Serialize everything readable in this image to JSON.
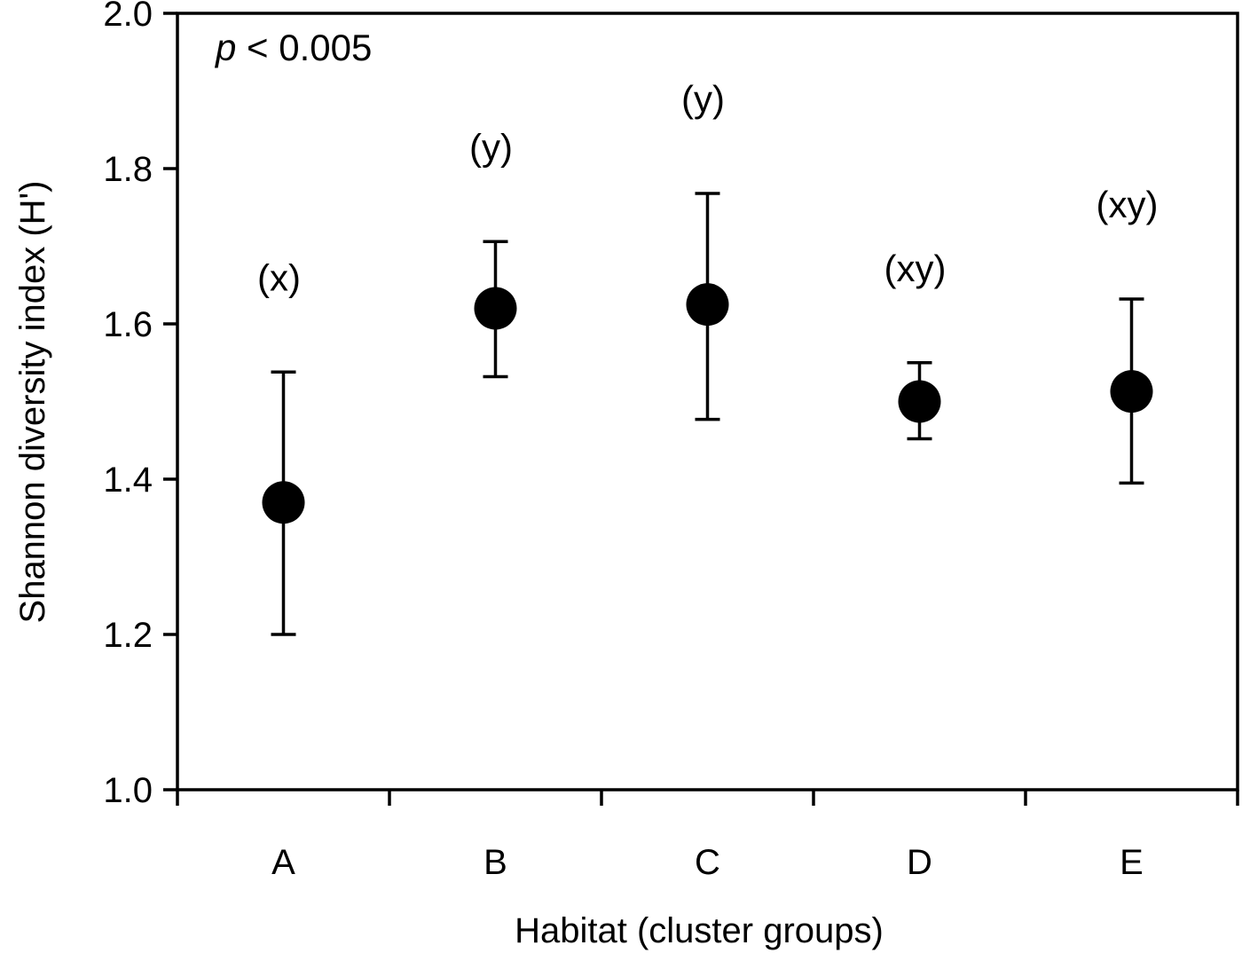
{
  "chart_data": {
    "type": "scatter",
    "categories": [
      "A",
      "B",
      "C",
      "D",
      "E"
    ],
    "values": [
      1.37,
      1.62,
      1.625,
      1.5,
      1.513
    ],
    "error_upper": [
      1.538,
      1.706,
      1.768,
      1.55,
      1.632
    ],
    "error_lower": [
      1.2,
      1.532,
      1.477,
      1.452,
      1.395
    ],
    "group_labels": [
      "(x)",
      "(y)",
      "(y)",
      "(xy)",
      "(xy)"
    ],
    "annotation": {
      "italic": "p",
      "rest": " < 0.005"
    },
    "xlabel": "Habitat (cluster groups)",
    "ylabel": "Shannon diversity index (H')",
    "ylim": [
      1.0,
      2.0
    ],
    "yticks": [
      "1.0",
      "1.2",
      "1.4",
      "1.6",
      "1.8",
      "2.0"
    ],
    "grid": false
  }
}
